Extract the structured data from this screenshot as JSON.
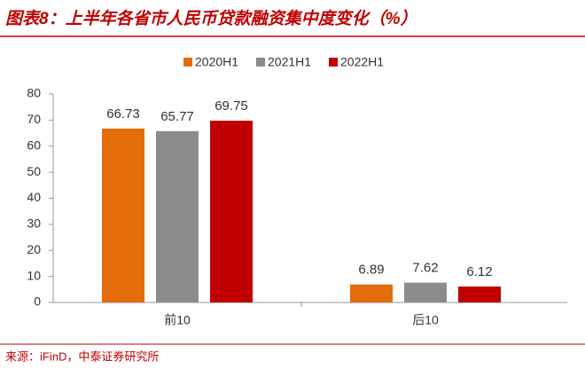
{
  "chart_data": {
    "type": "grouped_bar",
    "title": "图表8：上半年各省市人民币贷款融资集中度变化（%）",
    "categories": [
      "前10",
      "后10"
    ],
    "series": [
      {
        "name": "2020H1",
        "color": "#e46c0a",
        "values": [
          66.73,
          6.89
        ]
      },
      {
        "name": "2021H1",
        "color": "#8c8c8c",
        "values": [
          65.77,
          7.62
        ]
      },
      {
        "name": "2022H1",
        "color": "#c00000",
        "values": [
          69.75,
          6.12
        ]
      }
    ],
    "ylim": [
      0,
      80
    ],
    "yticks": [
      0,
      10,
      20,
      30,
      40,
      50,
      60,
      70,
      80
    ],
    "legend": "top",
    "source": "来源：iFinD，中泰证券研究所"
  }
}
